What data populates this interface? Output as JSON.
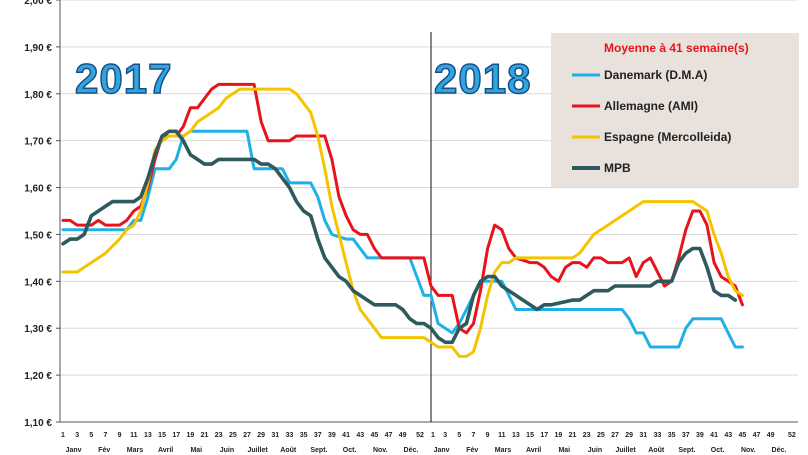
{
  "chart_data": {
    "type": "line",
    "title": "Moyenne à  41 semaine(s)",
    "ylim": [
      1.1,
      2.0
    ],
    "y_ticks": [
      "1,10 €",
      "1,20 €",
      "1,30 €",
      "1,40 €",
      "1,50 €",
      "1,60 €",
      "1,70 €",
      "1,80 €",
      "1,90 €",
      "2,00 €"
    ],
    "y_tick_values": [
      1.1,
      1.2,
      1.3,
      1.4,
      1.5,
      1.6,
      1.7,
      1.8,
      1.9,
      2.0
    ],
    "x_tick_labels_2017": [
      "1",
      "3",
      "5",
      "7",
      "9",
      "11",
      "13",
      "15",
      "17",
      "19",
      "21",
      "23",
      "25",
      "27",
      "29",
      "31",
      "33",
      "35",
      "37",
      "39",
      "41",
      "43",
      "45",
      "47",
      "49",
      "52"
    ],
    "x_tick_labels_2018": [
      "1",
      "3",
      "5",
      "7",
      "9",
      "11",
      "13",
      "15",
      "17",
      "19",
      "21",
      "23",
      "25",
      "27",
      "29",
      "31",
      "33",
      "35",
      "37",
      "39",
      "41",
      "43",
      "45",
      "47",
      "49",
      "52"
    ],
    "months_2017": [
      "Janv",
      "Fév",
      "Mars",
      "Avril",
      "Mai",
      "Juin",
      "Juillet",
      "Août",
      "Sept.",
      "Oct.",
      "Nov.",
      "Déc."
    ],
    "months_2018": [
      "Janv",
      "Fév",
      "Mars",
      "Avril",
      "Mai",
      "Juin",
      "Juillet",
      "Août",
      "Sept.",
      "Oct.",
      "Nov.",
      "Déc."
    ],
    "year_labels": [
      "2017",
      "2018"
    ],
    "series": [
      {
        "name": "Danemark (D.M.A)",
        "color": "#1fb0e6",
        "points": [
          [
            1,
            1.51
          ],
          [
            2,
            1.51
          ],
          [
            3,
            1.51
          ],
          [
            5,
            1.51
          ],
          [
            7,
            1.51
          ],
          [
            9,
            1.51
          ],
          [
            10,
            1.51
          ],
          [
            11,
            1.53
          ],
          [
            12,
            1.53
          ],
          [
            13,
            1.58
          ],
          [
            14,
            1.64
          ],
          [
            16,
            1.64
          ],
          [
            17,
            1.66
          ],
          [
            18,
            1.71
          ],
          [
            19,
            1.72
          ],
          [
            20,
            1.72
          ],
          [
            27,
            1.72
          ],
          [
            28,
            1.64
          ],
          [
            31,
            1.64
          ],
          [
            32,
            1.64
          ],
          [
            33,
            1.61
          ],
          [
            35,
            1.61
          ],
          [
            36,
            1.61
          ],
          [
            37,
            1.58
          ],
          [
            38,
            1.53
          ],
          [
            39,
            1.5
          ],
          [
            41,
            1.49
          ],
          [
            42,
            1.49
          ],
          [
            43,
            1.47
          ],
          [
            44,
            1.45
          ],
          [
            50,
            1.45
          ],
          [
            52,
            1.37
          ],
          [
            53,
            1.37
          ],
          [
            54,
            1.31
          ],
          [
            55,
            1.3
          ],
          [
            56,
            1.29
          ],
          [
            57,
            1.31
          ],
          [
            58,
            1.34
          ],
          [
            59,
            1.37
          ],
          [
            60,
            1.4
          ],
          [
            63,
            1.4
          ],
          [
            65,
            1.34
          ],
          [
            67,
            1.34
          ],
          [
            70,
            1.34
          ],
          [
            80,
            1.34
          ],
          [
            81,
            1.32
          ],
          [
            82,
            1.29
          ],
          [
            83,
            1.29
          ],
          [
            84,
            1.26
          ],
          [
            87,
            1.26
          ],
          [
            88,
            1.26
          ],
          [
            89,
            1.3
          ],
          [
            90,
            1.32
          ],
          [
            94,
            1.32
          ],
          [
            95,
            1.29
          ],
          [
            96,
            1.26
          ],
          [
            97,
            1.26
          ]
        ]
      },
      {
        "name": "Allemagne (AMI)",
        "color": "#e8141b",
        "points": [
          [
            1,
            1.53
          ],
          [
            2,
            1.53
          ],
          [
            3,
            1.52
          ],
          [
            4,
            1.52
          ],
          [
            5,
            1.52
          ],
          [
            6,
            1.53
          ],
          [
            7,
            1.52
          ],
          [
            8,
            1.52
          ],
          [
            9,
            1.52
          ],
          [
            10,
            1.53
          ],
          [
            11,
            1.55
          ],
          [
            12,
            1.56
          ],
          [
            13,
            1.6
          ],
          [
            14,
            1.66
          ],
          [
            15,
            1.71
          ],
          [
            17,
            1.71
          ],
          [
            18,
            1.73
          ],
          [
            19,
            1.77
          ],
          [
            20,
            1.77
          ],
          [
            21,
            1.79
          ],
          [
            22,
            1.81
          ],
          [
            23,
            1.82
          ],
          [
            28,
            1.82
          ],
          [
            29,
            1.74
          ],
          [
            30,
            1.7
          ],
          [
            33,
            1.7
          ],
          [
            34,
            1.71
          ],
          [
            38,
            1.71
          ],
          [
            39,
            1.66
          ],
          [
            40,
            1.58
          ],
          [
            41,
            1.54
          ],
          [
            42,
            1.51
          ],
          [
            43,
            1.5
          ],
          [
            44,
            1.5
          ],
          [
            45,
            1.47
          ],
          [
            46,
            1.45
          ],
          [
            52,
            1.45
          ],
          [
            53,
            1.39
          ],
          [
            54,
            1.37
          ],
          [
            56,
            1.37
          ],
          [
            57,
            1.3
          ],
          [
            58,
            1.29
          ],
          [
            59,
            1.31
          ],
          [
            60,
            1.38
          ],
          [
            61,
            1.47
          ],
          [
            62,
            1.52
          ],
          [
            63,
            1.51
          ],
          [
            64,
            1.47
          ],
          [
            65,
            1.45
          ],
          [
            67,
            1.44
          ],
          [
            68,
            1.44
          ],
          [
            69,
            1.43
          ],
          [
            70,
            1.41
          ],
          [
            71,
            1.4
          ],
          [
            72,
            1.43
          ],
          [
            73,
            1.44
          ],
          [
            74,
            1.44
          ],
          [
            75,
            1.43
          ],
          [
            76,
            1.45
          ],
          [
            77,
            1.45
          ],
          [
            78,
            1.44
          ],
          [
            79,
            1.44
          ],
          [
            80,
            1.44
          ],
          [
            81,
            1.45
          ],
          [
            82,
            1.41
          ],
          [
            83,
            1.44
          ],
          [
            84,
            1.45
          ],
          [
            85,
            1.42
          ],
          [
            86,
            1.39
          ],
          [
            87,
            1.4
          ],
          [
            88,
            1.45
          ],
          [
            89,
            1.51
          ],
          [
            90,
            1.55
          ],
          [
            91,
            1.55
          ],
          [
            92,
            1.52
          ],
          [
            93,
            1.44
          ],
          [
            94,
            1.41
          ],
          [
            95,
            1.4
          ],
          [
            96,
            1.39
          ],
          [
            97,
            1.35
          ]
        ]
      },
      {
        "name": "Espagne (Mercolleida)",
        "color": "#f5c400",
        "points": [
          [
            1,
            1.42
          ],
          [
            3,
            1.42
          ],
          [
            5,
            1.44
          ],
          [
            7,
            1.46
          ],
          [
            9,
            1.49
          ],
          [
            10,
            1.51
          ],
          [
            11,
            1.52
          ],
          [
            12,
            1.55
          ],
          [
            13,
            1.61
          ],
          [
            14,
            1.68
          ],
          [
            15,
            1.7
          ],
          [
            16,
            1.71
          ],
          [
            17,
            1.71
          ],
          [
            18,
            1.71
          ],
          [
            19,
            1.72
          ],
          [
            20,
            1.74
          ],
          [
            21,
            1.75
          ],
          [
            22,
            1.76
          ],
          [
            23,
            1.77
          ],
          [
            24,
            1.79
          ],
          [
            25,
            1.8
          ],
          [
            26,
            1.81
          ],
          [
            33,
            1.81
          ],
          [
            34,
            1.8
          ],
          [
            35,
            1.78
          ],
          [
            36,
            1.76
          ],
          [
            37,
            1.71
          ],
          [
            38,
            1.64
          ],
          [
            39,
            1.56
          ],
          [
            40,
            1.5
          ],
          [
            41,
            1.44
          ],
          [
            42,
            1.38
          ],
          [
            43,
            1.34
          ],
          [
            44,
            1.32
          ],
          [
            45,
            1.3
          ],
          [
            46,
            1.28
          ],
          [
            52,
            1.28
          ],
          [
            53,
            1.27
          ],
          [
            54,
            1.26
          ],
          [
            56,
            1.26
          ],
          [
            57,
            1.24
          ],
          [
            58,
            1.24
          ],
          [
            59,
            1.25
          ],
          [
            60,
            1.3
          ],
          [
            61,
            1.37
          ],
          [
            62,
            1.42
          ],
          [
            63,
            1.44
          ],
          [
            64,
            1.44
          ],
          [
            65,
            1.45
          ],
          [
            66,
            1.45
          ],
          [
            73,
            1.45
          ],
          [
            74,
            1.46
          ],
          [
            75,
            1.48
          ],
          [
            76,
            1.5
          ],
          [
            77,
            1.51
          ],
          [
            78,
            1.52
          ],
          [
            79,
            1.53
          ],
          [
            80,
            1.54
          ],
          [
            81,
            1.55
          ],
          [
            82,
            1.56
          ],
          [
            83,
            1.57
          ],
          [
            86,
            1.57
          ],
          [
            90,
            1.57
          ],
          [
            91,
            1.56
          ],
          [
            92,
            1.55
          ],
          [
            93,
            1.5
          ],
          [
            94,
            1.46
          ],
          [
            95,
            1.41
          ],
          [
            96,
            1.38
          ],
          [
            97,
            1.37
          ]
        ]
      },
      {
        "name": "MPB",
        "color": "#2e5a5e",
        "points": [
          [
            1,
            1.48
          ],
          [
            2,
            1.49
          ],
          [
            3,
            1.49
          ],
          [
            4,
            1.5
          ],
          [
            5,
            1.54
          ],
          [
            6,
            1.55
          ],
          [
            7,
            1.56
          ],
          [
            8,
            1.57
          ],
          [
            9,
            1.57
          ],
          [
            10,
            1.57
          ],
          [
            11,
            1.57
          ],
          [
            12,
            1.58
          ],
          [
            13,
            1.62
          ],
          [
            14,
            1.67
          ],
          [
            15,
            1.71
          ],
          [
            16,
            1.72
          ],
          [
            17,
            1.72
          ],
          [
            18,
            1.7
          ],
          [
            19,
            1.67
          ],
          [
            20,
            1.66
          ],
          [
            21,
            1.65
          ],
          [
            22,
            1.65
          ],
          [
            23,
            1.66
          ],
          [
            25,
            1.66
          ],
          [
            26,
            1.66
          ],
          [
            27,
            1.66
          ],
          [
            28,
            1.66
          ],
          [
            29,
            1.65
          ],
          [
            30,
            1.65
          ],
          [
            31,
            1.64
          ],
          [
            32,
            1.62
          ],
          [
            33,
            1.6
          ],
          [
            34,
            1.57
          ],
          [
            35,
            1.55
          ],
          [
            36,
            1.54
          ],
          [
            37,
            1.49
          ],
          [
            38,
            1.45
          ],
          [
            39,
            1.43
          ],
          [
            40,
            1.41
          ],
          [
            41,
            1.4
          ],
          [
            42,
            1.38
          ],
          [
            43,
            1.37
          ],
          [
            44,
            1.36
          ],
          [
            45,
            1.35
          ],
          [
            48,
            1.35
          ],
          [
            49,
            1.34
          ],
          [
            50,
            1.32
          ],
          [
            51,
            1.31
          ],
          [
            52,
            1.31
          ],
          [
            53,
            1.3
          ],
          [
            54,
            1.28
          ],
          [
            55,
            1.27
          ],
          [
            56,
            1.27
          ],
          [
            57,
            1.3
          ],
          [
            58,
            1.31
          ],
          [
            59,
            1.37
          ],
          [
            60,
            1.4
          ],
          [
            61,
            1.41
          ],
          [
            62,
            1.41
          ],
          [
            63,
            1.39
          ],
          [
            64,
            1.38
          ],
          [
            65,
            1.37
          ],
          [
            66,
            1.36
          ],
          [
            67,
            1.35
          ],
          [
            68,
            1.34
          ],
          [
            69,
            1.35
          ],
          [
            70,
            1.35
          ],
          [
            73,
            1.36
          ],
          [
            74,
            1.36
          ],
          [
            75,
            1.37
          ],
          [
            76,
            1.38
          ],
          [
            77,
            1.38
          ],
          [
            78,
            1.38
          ],
          [
            79,
            1.39
          ],
          [
            80,
            1.39
          ],
          [
            81,
            1.39
          ],
          [
            82,
            1.39
          ],
          [
            83,
            1.39
          ],
          [
            84,
            1.39
          ],
          [
            85,
            1.4
          ],
          [
            86,
            1.4
          ],
          [
            87,
            1.4
          ],
          [
            88,
            1.44
          ],
          [
            89,
            1.46
          ],
          [
            90,
            1.47
          ],
          [
            91,
            1.47
          ],
          [
            92,
            1.43
          ],
          [
            93,
            1.38
          ],
          [
            94,
            1.37
          ],
          [
            95,
            1.37
          ],
          [
            96,
            1.36
          ]
        ]
      }
    ]
  }
}
